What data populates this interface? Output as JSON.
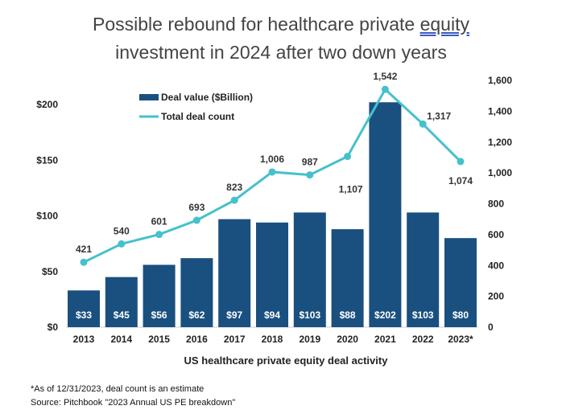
{
  "title_line1": "Possible rebound for healthcare private equity",
  "title_line2": "investment in 2024 after two down years",
  "chart_data": {
    "type": "bar+line",
    "categories": [
      "2013",
      "2014",
      "2015",
      "2016",
      "2017",
      "2018",
      "2019",
      "2020",
      "2021",
      "2022",
      "2023*"
    ],
    "series": [
      {
        "name": "Deal value ($Billion)",
        "type": "bar",
        "axis": "left",
        "color": "#1a507f",
        "values": [
          33,
          45,
          56,
          62,
          97,
          94,
          103,
          88,
          202,
          103,
          80
        ],
        "labels": [
          "$33",
          "$45",
          "$56",
          "$62",
          "$97",
          "$94",
          "$103",
          "$88",
          "$202",
          "$103",
          "$80"
        ]
      },
      {
        "name": "Total deal count",
        "type": "line",
        "axis": "right",
        "color": "#45c1cc",
        "values": [
          421,
          540,
          601,
          693,
          823,
          1006,
          987,
          1107,
          1542,
          1317,
          1074
        ],
        "labels": [
          "421",
          "540",
          "601",
          "693",
          "823",
          "1,006",
          "987",
          "1,107",
          "1,542",
          "1,317",
          "1,074"
        ]
      }
    ],
    "xlabel": "US healthcare private equity deal activity",
    "left_axis": {
      "ylim": [
        0,
        200
      ],
      "ticks": [
        "$0",
        "$50",
        "$100",
        "$150",
        "$200"
      ]
    },
    "right_axis": {
      "ylim": [
        0,
        1600
      ],
      "ticks": [
        "0",
        "200",
        "400",
        "600",
        "800",
        "1,000",
        "1,200",
        "1,400",
        "1,600"
      ]
    },
    "grid": false,
    "legend": "top-left"
  },
  "footnote": "*As of 12/31/2023, deal count is an estimate",
  "source": "Source: Pitchbook \"2023 Annual US PE breakdown\""
}
